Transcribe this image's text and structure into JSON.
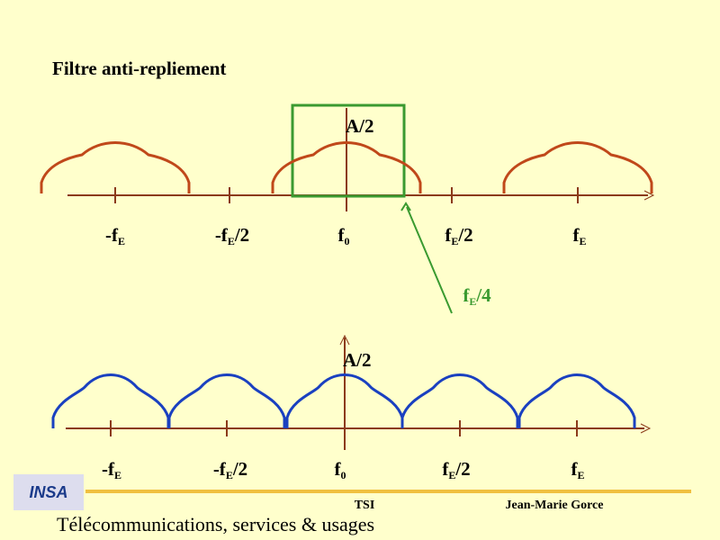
{
  "title": "Filtre anti-repliement",
  "top": {
    "amplitude": "A/2",
    "axis_labels": [
      {
        "pre": "-f",
        "sub": "E"
      },
      {
        "pre": "-f",
        "sub": "E",
        "post": "/2"
      },
      {
        "pre": "f",
        "sub": "0"
      },
      {
        "pre": "f",
        "sub": "E",
        "post": "/2"
      },
      {
        "pre": "f",
        "sub": "E"
      }
    ],
    "filter_label": {
      "pre": "f",
      "sub": "E",
      "post": "/4"
    }
  },
  "bottom": {
    "amplitude": "A/2",
    "axis_labels": [
      {
        "pre": "-f",
        "sub": "E"
      },
      {
        "pre": "-f",
        "sub": "E",
        "post": "/2"
      },
      {
        "pre": "f",
        "sub": "0"
      },
      {
        "pre": "f",
        "sub": "E",
        "post": "/2"
      },
      {
        "pre": "f",
        "sub": "E"
      }
    ]
  },
  "footer": {
    "logo": "INSA",
    "course": "TSI",
    "author": "Jean-Marie Gorce",
    "department": "Télécommunications, services & usages"
  }
}
